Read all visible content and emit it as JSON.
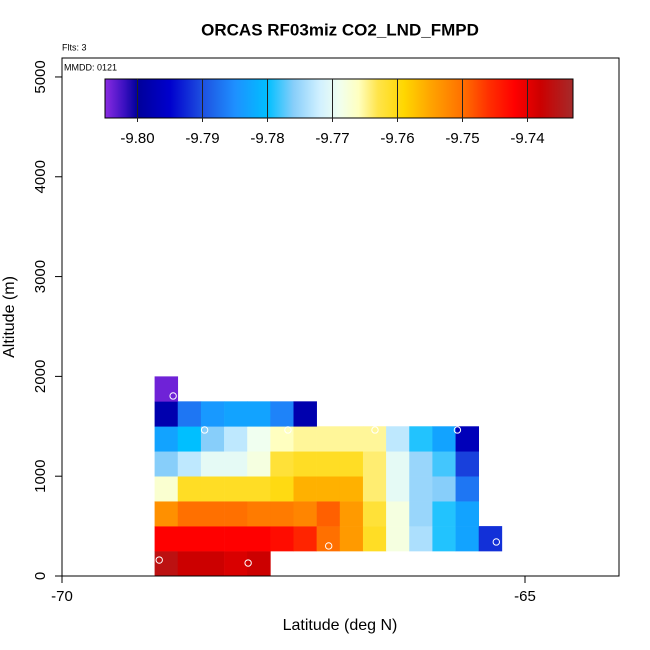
{
  "chart_data": {
    "type": "heatmap",
    "title": "ORCAS RF03miz CO2_LND_FMPD",
    "corner_label": "Flts: 3",
    "annotation": "MMDD: 0121",
    "x_label": "Latitude (deg N)",
    "y_label": "Altitude (m)",
    "xlim": [
      -70,
      -63.985
    ],
    "xticks": [
      -70,
      -65
    ],
    "ylim": [
      0,
      5190
    ],
    "yticks": [
      0,
      1000,
      2000,
      3000,
      4000,
      5000
    ],
    "x_edges": [
      -69.0,
      -68.75,
      -68.5,
      -68.25,
      -68.0,
      -67.75,
      -67.5,
      -67.25,
      -67.0,
      -66.75,
      -66.5,
      -66.25,
      -66.0,
      -65.75,
      -65.5,
      -65.25,
      -65.0
    ],
    "y_edges": [
      0,
      250,
      500,
      750,
      1000,
      1250,
      1500,
      1750,
      2000
    ],
    "z": [
      [
        -9.736,
        -9.738,
        -9.738,
        -9.739,
        -9.738,
        null,
        null,
        null,
        null,
        null,
        null,
        null,
        null,
        null,
        null,
        null
      ],
      [
        -9.742,
        -9.742,
        -9.742,
        -9.742,
        -9.742,
        -9.743,
        -9.745,
        -9.75,
        -9.754,
        -9.761,
        -9.768,
        -9.774,
        -9.779,
        -9.783,
        -9.792,
        null
      ],
      [
        -9.753,
        -9.75,
        -9.75,
        -9.75,
        -9.751,
        -9.751,
        -9.752,
        -9.749,
        -9.754,
        -9.762,
        -9.768,
        -9.775,
        -9.779,
        -9.783,
        null,
        null
      ],
      [
        -9.767,
        -9.761,
        -9.761,
        -9.761,
        -9.761,
        -9.76,
        -9.756,
        -9.756,
        -9.756,
        -9.764,
        -9.77,
        -9.775,
        -9.776,
        -9.787,
        null,
        null
      ],
      [
        -9.776,
        -9.773,
        -9.77,
        -9.77,
        -9.768,
        -9.762,
        -9.761,
        -9.761,
        -9.761,
        -9.764,
        -9.77,
        -9.775,
        -9.778,
        -9.791,
        null,
        null
      ],
      [
        -9.783,
        -9.78,
        -9.776,
        -9.773,
        -9.769,
        -9.766,
        -9.765,
        -9.765,
        -9.765,
        -9.765,
        -9.773,
        -9.779,
        -9.783,
        -9.797,
        null,
        null
      ],
      [
        -9.798,
        -9.787,
        -9.784,
        -9.783,
        -9.783,
        -9.786,
        -9.798,
        null,
        null,
        null,
        null,
        null,
        null,
        null,
        null,
        null
      ],
      [
        -9.804,
        null,
        null,
        null,
        null,
        null,
        null,
        null,
        null,
        null,
        null,
        null,
        null,
        null,
        null,
        null
      ]
    ],
    "points": {
      "color": "#ffffff",
      "x": [
        -68.8,
        -68.46,
        -67.56,
        -66.62,
        -65.73,
        -67.12,
        -65.31,
        -68.95,
        -67.99
      ],
      "y": [
        1804,
        1463,
        1463,
        1463,
        1463,
        301,
        341,
        160,
        130
      ]
    },
    "colorbar_lim": [
      -9.805,
      -9.733
    ],
    "colorbar_ticks": [
      {
        "value": -9.8,
        "label": "-9.80"
      },
      {
        "value": -9.79,
        "label": "-9.79"
      },
      {
        "value": -9.78,
        "label": "-9.78"
      },
      {
        "value": -9.77,
        "label": "-9.77"
      },
      {
        "value": -9.76,
        "label": "-9.76"
      },
      {
        "value": -9.75,
        "label": "-9.75"
      },
      {
        "value": -9.74,
        "label": "-9.74"
      }
    ],
    "colorscale": [
      {
        "value": -9.805,
        "color": "#8a2be2"
      },
      {
        "value": -9.802,
        "color": "#3a10c0"
      },
      {
        "value": -9.8,
        "color": "#00009a"
      },
      {
        "value": -9.795,
        "color": "#0000cd"
      },
      {
        "value": -9.79,
        "color": "#1e50e0"
      },
      {
        "value": -9.785,
        "color": "#1e90ff"
      },
      {
        "value": -9.78,
        "color": "#00bfff"
      },
      {
        "value": -9.776,
        "color": "#87cefa"
      },
      {
        "value": -9.772,
        "color": "#d0f0ff"
      },
      {
        "value": -9.769,
        "color": "#f0fff0"
      },
      {
        "value": -9.766,
        "color": "#ffffc0"
      },
      {
        "value": -9.763,
        "color": "#ffe44a"
      },
      {
        "value": -9.759,
        "color": "#ffd700"
      },
      {
        "value": -9.755,
        "color": "#ffa500"
      },
      {
        "value": -9.75,
        "color": "#ff7000"
      },
      {
        "value": -9.746,
        "color": "#ff3000"
      },
      {
        "value": -9.742,
        "color": "#ff0000"
      },
      {
        "value": -9.738,
        "color": "#cc0000"
      },
      {
        "value": -9.733,
        "color": "#a52a2a"
      }
    ]
  }
}
